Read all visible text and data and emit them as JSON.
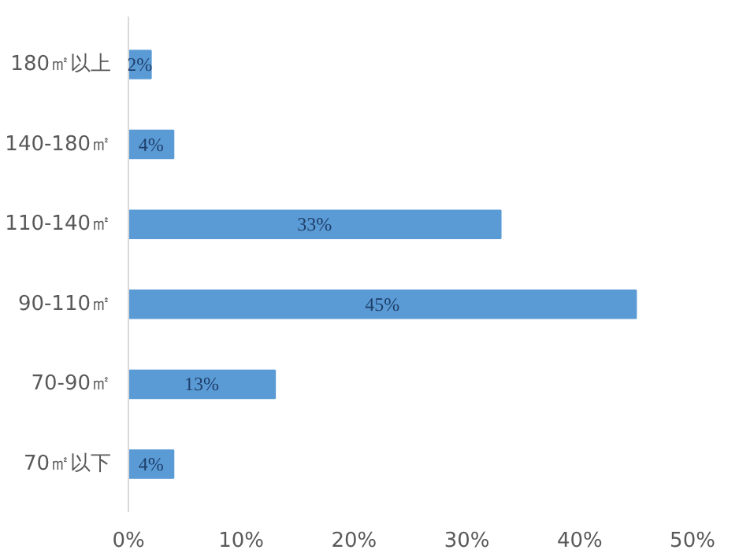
{
  "chart_data": {
    "type": "bar",
    "orientation": "horizontal",
    "categories": [
      "180㎡以上",
      "140-180㎡",
      "110-140㎡",
      "90-110㎡",
      "70-90㎡",
      "70㎡以下"
    ],
    "values": [
      2,
      4,
      33,
      45,
      13,
      4
    ],
    "color": "#5b9bd5",
    "xlim": [
      0,
      50
    ],
    "xticks": [
      {
        "value": 0,
        "label": "0%"
      },
      {
        "value": 10,
        "label": "10%"
      },
      {
        "value": 20,
        "label": "20%"
      },
      {
        "value": 30,
        "label": "30%"
      },
      {
        "value": 40,
        "label": "40%"
      },
      {
        "value": 50,
        "label": "50%"
      }
    ],
    "value_labels": [
      "2%",
      "4%",
      "33%",
      "45%",
      "13%",
      "4%"
    ],
    "grid": false
  }
}
